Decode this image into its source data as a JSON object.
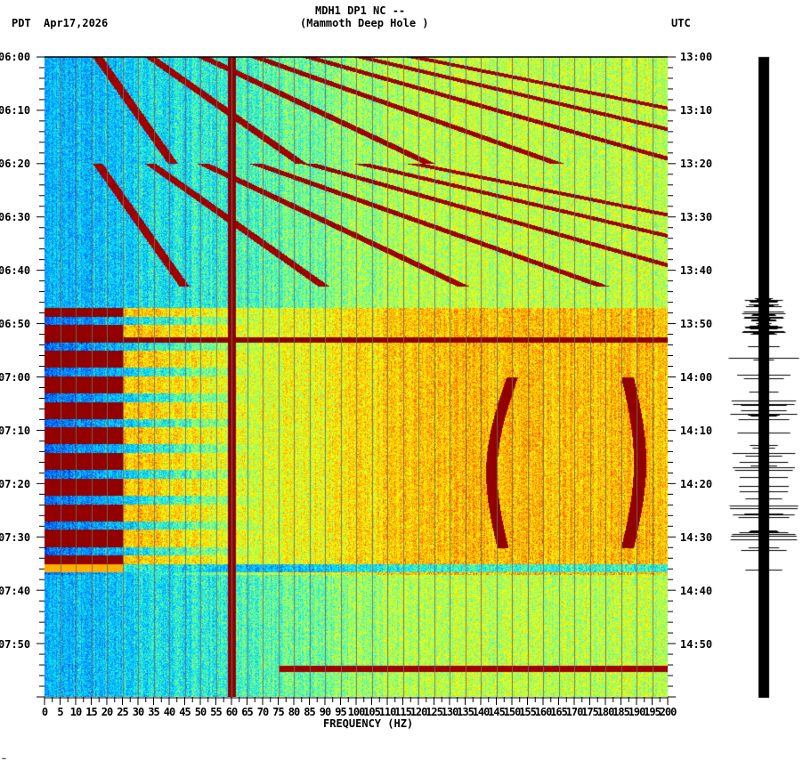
{
  "header": {
    "left_tz": "PDT",
    "date": "Apr17,2026",
    "title_line1": "MDH1 DP1 NC --",
    "title_line2": "(Mammoth Deep Hole )",
    "right_tz": "UTC"
  },
  "footer_mark": "~",
  "chart_data": {
    "type": "heatmap",
    "title": "MDH1 DP1 NC -- (Mammoth Deep Hole )",
    "subtitle": "Apr17,2026",
    "xlabel": "FREQUENCY (HZ)",
    "ylabel_left": "PDT",
    "ylabel_right": "UTC",
    "x_range": [
      0,
      200
    ],
    "x_ticks": [
      0,
      5,
      10,
      15,
      20,
      25,
      30,
      35,
      40,
      45,
      50,
      55,
      60,
      65,
      70,
      75,
      80,
      85,
      90,
      95,
      100,
      105,
      110,
      115,
      120,
      125,
      130,
      135,
      140,
      145,
      150,
      155,
      160,
      165,
      170,
      175,
      180,
      185,
      190,
      195,
      200
    ],
    "y_ticks_left": [
      "06:00",
      "06:10",
      "06:20",
      "06:30",
      "06:40",
      "06:50",
      "07:00",
      "07:10",
      "07:20",
      "07:30",
      "07:40",
      "07:50"
    ],
    "y_ticks_right": [
      "13:00",
      "13:10",
      "13:20",
      "13:30",
      "13:40",
      "13:50",
      "14:00",
      "14:10",
      "14:20",
      "14:30",
      "14:40",
      "14:50"
    ],
    "time_range_pdt": [
      "06:00",
      "08:00"
    ],
    "grid": "vertical every 5 Hz",
    "colormap": [
      "#0000c0",
      "#0080ff",
      "#00ffff",
      "#80ff80",
      "#ffff00",
      "#ff8000",
      "#ff0000",
      "#800000"
    ],
    "features": [
      {
        "name": "60 Hz line",
        "freq": 60,
        "intensity": "max"
      },
      {
        "name": "gliding harmonics",
        "time": "06:00-06:50",
        "freq_range": [
          20,
          140
        ]
      },
      {
        "name": "broadband high noise",
        "time": "06:47-07:37",
        "freq_range": [
          0,
          60
        ]
      },
      {
        "name": "tremor band",
        "time": "07:00-07:30",
        "freq_range": [
          145,
          155
        ]
      },
      {
        "name": "tremor band",
        "time": "07:00-07:30",
        "freq_range": [
          180,
          195
        ]
      },
      {
        "name": "horizontal line",
        "time": "06:51",
        "freq_range": [
          0,
          200
        ]
      },
      {
        "name": "horizontal line",
        "time": "07:56",
        "freq_range": [
          75,
          200
        ]
      }
    ]
  },
  "seismogram": {
    "label": "trace",
    "color": "#000000"
  }
}
